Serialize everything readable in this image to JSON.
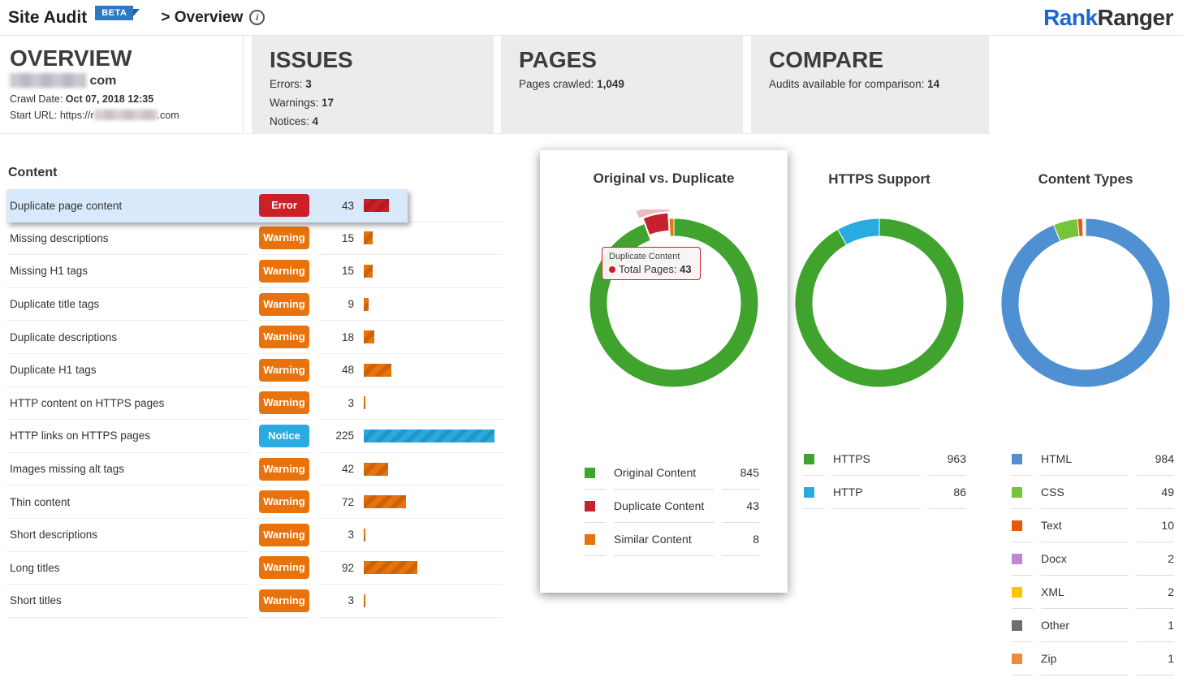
{
  "header": {
    "app_title": "Site Audit",
    "beta_badge": "BETA",
    "breadcrumb": "> Overview",
    "info_icon": "i",
    "logo": {
      "part1": "Rank",
      "part2": "Ranger"
    }
  },
  "summary_cards": {
    "overview": {
      "title": "OVERVIEW",
      "domain_suffix": "com",
      "crawl_date_label": "Crawl Date:",
      "crawl_date": "Oct 07, 2018 12:35",
      "start_url_label": "Start URL:",
      "start_url_prefix": "https://r",
      "start_url_suffix": ".com"
    },
    "issues": {
      "title": "ISSUES",
      "rows": [
        {
          "label": "Errors:",
          "value": "3"
        },
        {
          "label": "Warnings:",
          "value": "17"
        },
        {
          "label": "Notices:",
          "value": "4"
        }
      ]
    },
    "pages": {
      "title": "PAGES",
      "label": "Pages crawled:",
      "value": "1,049"
    },
    "compare": {
      "title": "COMPARE",
      "label": "Audits available for comparison:",
      "value": "14"
    }
  },
  "content_section": {
    "title": "Content",
    "max_bar_value": 225,
    "rows": [
      {
        "label": "Duplicate page content",
        "severity": "Error",
        "value": 43,
        "highlighted": true
      },
      {
        "label": "Missing descriptions",
        "severity": "Warning",
        "value": 15
      },
      {
        "label": "Missing H1 tags",
        "severity": "Warning",
        "value": 15
      },
      {
        "label": "Duplicate title tags",
        "severity": "Warning",
        "value": 9
      },
      {
        "label": "Duplicate descriptions",
        "severity": "Warning",
        "value": 18
      },
      {
        "label": "Duplicate H1 tags",
        "severity": "Warning",
        "value": 48
      },
      {
        "label": "HTTP content on HTTPS pages",
        "severity": "Warning",
        "value": 3
      },
      {
        "label": "HTTP links on HTTPS pages",
        "severity": "Notice",
        "value": 225
      },
      {
        "label": "Images missing alt tags",
        "severity": "Warning",
        "value": 42
      },
      {
        "label": "Thin content",
        "severity": "Warning",
        "value": 72
      },
      {
        "label": "Short descriptions",
        "severity": "Warning",
        "value": 3
      },
      {
        "label": "Long titles",
        "severity": "Warning",
        "value": 92
      },
      {
        "label": "Short titles",
        "severity": "Warning",
        "value": 3
      }
    ]
  },
  "severity_colors": {
    "Error": "#CB2027",
    "Warning": "#E8730C",
    "Notice": "#29ABE2"
  },
  "chart_data": [
    {
      "type": "pie",
      "title": "Original vs. Duplicate",
      "legend_position": "bottom",
      "series": [
        {
          "name": "Original Content",
          "value": 845,
          "color": "#3FA32E"
        },
        {
          "name": "Duplicate Content",
          "value": 43,
          "color": "#C8202F",
          "highlighted": true
        },
        {
          "name": "Similar Content",
          "value": 8,
          "color": "#E8730C"
        }
      ],
      "tooltip": {
        "title": "Duplicate Content",
        "label": "Total Pages:",
        "value": "43"
      }
    },
    {
      "type": "pie",
      "title": "HTTPS Support",
      "legend_position": "bottom",
      "series": [
        {
          "name": "HTTPS",
          "value": 963,
          "color": "#3FA32E"
        },
        {
          "name": "HTTP",
          "value": 86,
          "color": "#29ABE2"
        }
      ]
    },
    {
      "type": "pie",
      "title": "Content Types",
      "legend_position": "bottom",
      "series": [
        {
          "name": "HTML",
          "value": 984,
          "color": "#4E90D2"
        },
        {
          "name": "CSS",
          "value": 49,
          "color": "#76C43C"
        },
        {
          "name": "Text",
          "value": 10,
          "color": "#E25B0E"
        },
        {
          "name": "Docx",
          "value": 2,
          "color": "#BB87D6"
        },
        {
          "name": "XML",
          "value": 2,
          "color": "#FFC400"
        },
        {
          "name": "Other",
          "value": 1,
          "color": "#6E6E6E"
        },
        {
          "name": "Zip",
          "value": 1,
          "color": "#EF8A3C"
        }
      ]
    }
  ]
}
